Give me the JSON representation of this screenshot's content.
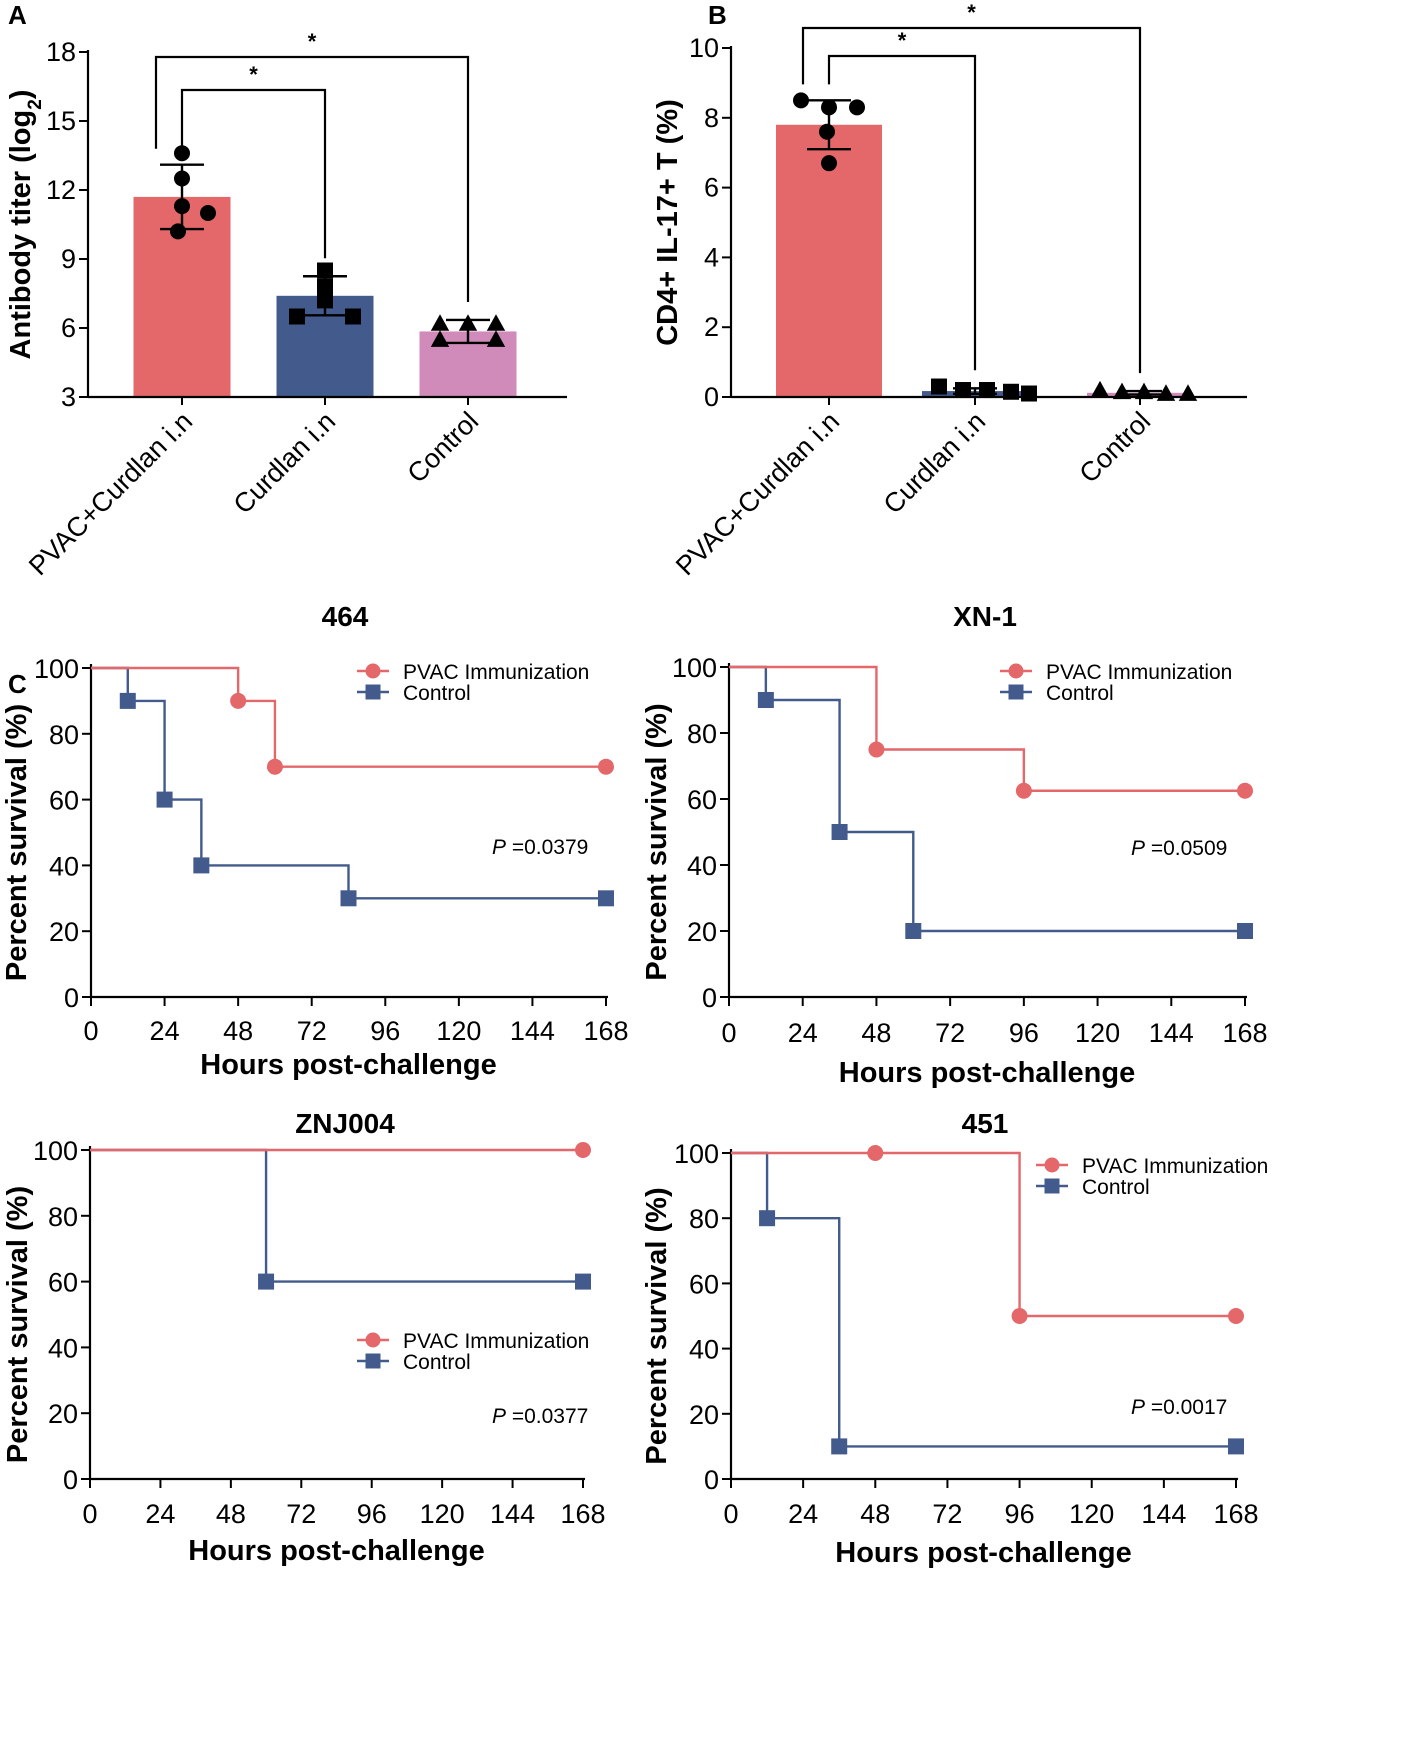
{
  "panels": {
    "A": "A",
    "B": "B",
    "C": "C"
  },
  "chart_data": [
    {
      "id": "A",
      "type": "bar",
      "ylabel": "Antibody titer (log",
      "ylabel_sub": "2",
      "ylabel_close": ")",
      "ylim": [
        3,
        18
      ],
      "yticks": [
        "3",
        "6",
        "9",
        "12",
        "15",
        "18"
      ],
      "categories": [
        "PVAC+Curdlan i.n",
        "Curdlan i.n",
        "Control"
      ],
      "values": [
        11.7,
        7.4,
        5.85
      ],
      "error": [
        1.4,
        0.85,
        0.5
      ],
      "colors": [
        "#e4676a",
        "#435a8c",
        "#d08bbb"
      ],
      "markers": [
        "circle",
        "square",
        "triangle"
      ],
      "points": [
        [
          13.6,
          12.5,
          11.3,
          11.0,
          10.2
        ],
        [
          8.5,
          7.8,
          7.2,
          6.5,
          6.5
        ],
        [
          6.2,
          6.2,
          6.2,
          5.5,
          5.5
        ]
      ],
      "significance": [
        {
          "from": 0,
          "to": 1,
          "label": "*"
        },
        {
          "from": 0,
          "to": 2,
          "label": "*"
        }
      ]
    },
    {
      "id": "B",
      "type": "bar",
      "ylabel": "CD4+ IL-17+ T (%)",
      "ylim": [
        0,
        10
      ],
      "yticks": [
        "0",
        "2",
        "4",
        "6",
        "8",
        "10"
      ],
      "categories": [
        "PVAC+Curdlan i.n",
        "Curdlan i.n",
        "Control"
      ],
      "values": [
        7.8,
        0.17,
        0.12
      ],
      "error": [
        0.7,
        0.08,
        0.05
      ],
      "colors": [
        "#e4676a",
        "#435a8c",
        "#d08bbb"
      ],
      "markers": [
        "circle",
        "square",
        "triangle"
      ],
      "points": [
        [
          8.5,
          8.3,
          8.3,
          7.6,
          6.7
        ],
        [
          0.3,
          0.2,
          0.2,
          0.15,
          0.1
        ],
        [
          0.2,
          0.15,
          0.15,
          0.1,
          0.1
        ]
      ],
      "significance": [
        {
          "from": 0,
          "to": 1,
          "label": "*"
        },
        {
          "from": 0,
          "to": 2,
          "label": "*"
        }
      ]
    },
    {
      "id": "C1",
      "type": "line",
      "title": "464",
      "xlabel": "Hours post-challenge",
      "ylabel": "Percent survival (%)",
      "xlim": [
        0,
        168
      ],
      "ylim": [
        0,
        100
      ],
      "xticks": [
        "0",
        "24",
        "48",
        "72",
        "96",
        "120",
        "144",
        "168"
      ],
      "yticks": [
        "0",
        "20",
        "40",
        "60",
        "80",
        "100"
      ],
      "legend_position": "top-right",
      "pvalue_prefix": "P",
      "pvalue_text": " =0.0379",
      "series": [
        {
          "name": "PVAC Immunization",
          "color": "#e4676a",
          "marker": "circle",
          "steps": [
            [
              0,
              100
            ],
            [
              48,
              90
            ],
            [
              60,
              70
            ],
            [
              168,
              70
            ]
          ],
          "markers": [
            [
              48,
              90
            ],
            [
              60,
              70
            ],
            [
              168,
              70
            ]
          ]
        },
        {
          "name": "Control",
          "color": "#435a8c",
          "marker": "square",
          "steps": [
            [
              0,
              100
            ],
            [
              12,
              90
            ],
            [
              24,
              60
            ],
            [
              36,
              40
            ],
            [
              84,
              30
            ],
            [
              168,
              30
            ]
          ],
          "markers": [
            [
              12,
              90
            ],
            [
              24,
              60
            ],
            [
              36,
              40
            ],
            [
              84,
              30
            ],
            [
              168,
              30
            ]
          ]
        }
      ]
    },
    {
      "id": "C2",
      "type": "line",
      "title": "XN-1",
      "xlabel": "Hours post-challenge",
      "ylabel": "Percent survival (%)",
      "xlim": [
        0,
        168
      ],
      "ylim": [
        0,
        100
      ],
      "xticks": [
        "0",
        "24",
        "48",
        "72",
        "96",
        "120",
        "144",
        "168"
      ],
      "yticks": [
        "0",
        "20",
        "40",
        "60",
        "80",
        "100"
      ],
      "legend_position": "top-right",
      "pvalue_prefix": "P",
      "pvalue_text": " =0.0509",
      "series": [
        {
          "name": "PVAC Immunization",
          "color": "#e4676a",
          "marker": "circle",
          "steps": [
            [
              0,
              100
            ],
            [
              48,
              75
            ],
            [
              96,
              62.5
            ],
            [
              168,
              62.5
            ]
          ],
          "markers": [
            [
              48,
              75
            ],
            [
              96,
              62.5
            ],
            [
              168,
              62.5
            ]
          ]
        },
        {
          "name": "Control",
          "color": "#435a8c",
          "marker": "square",
          "steps": [
            [
              0,
              100
            ],
            [
              12,
              90
            ],
            [
              36,
              50
            ],
            [
              60,
              20
            ],
            [
              168,
              20
            ]
          ],
          "markers": [
            [
              12,
              90
            ],
            [
              36,
              50
            ],
            [
              60,
              20
            ],
            [
              168,
              20
            ]
          ]
        }
      ]
    },
    {
      "id": "C3",
      "type": "line",
      "title": "ZNJ004",
      "xlabel": "Hours post-challenge",
      "ylabel": "Percent survival (%)",
      "xlim": [
        0,
        168
      ],
      "ylim": [
        0,
        100
      ],
      "xticks": [
        "0",
        "24",
        "48",
        "72",
        "96",
        "120",
        "144",
        "168"
      ],
      "yticks": [
        "0",
        "20",
        "40",
        "60",
        "80",
        "100"
      ],
      "legend_position": "middle-right",
      "pvalue_prefix": "P",
      "pvalue_text": " =0.0377",
      "series": [
        {
          "name": "PVAC Immunization",
          "color": "#e4676a",
          "marker": "circle",
          "steps": [
            [
              0,
              100
            ],
            [
              168,
              100
            ]
          ],
          "markers": [
            [
              168,
              100
            ]
          ]
        },
        {
          "name": "Control",
          "color": "#435a8c",
          "marker": "square",
          "steps": [
            [
              0,
              100
            ],
            [
              60,
              60
            ],
            [
              168,
              60
            ]
          ],
          "markers": [
            [
              60,
              60
            ],
            [
              168,
              60
            ]
          ]
        }
      ]
    },
    {
      "id": "C4",
      "type": "line",
      "title": "451",
      "xlabel": "Hours post-challenge",
      "ylabel": "Percent survival (%)",
      "xlim": [
        0,
        168
      ],
      "ylim": [
        0,
        100
      ],
      "xticks": [
        "0",
        "24",
        "48",
        "72",
        "96",
        "120",
        "144",
        "168"
      ],
      "yticks": [
        "0",
        "20",
        "40",
        "60",
        "80",
        "100"
      ],
      "legend_position": "top-right",
      "pvalue_prefix": "P",
      "pvalue_text": " =0.0017",
      "series": [
        {
          "name": "PVAC Immunization",
          "color": "#e4676a",
          "marker": "circle",
          "steps": [
            [
              0,
              100
            ],
            [
              96,
              50
            ],
            [
              168,
              50
            ]
          ],
          "markers": [
            [
              48,
              100
            ],
            [
              96,
              50
            ],
            [
              168,
              50
            ]
          ]
        },
        {
          "name": "Control",
          "color": "#435a8c",
          "marker": "square",
          "steps": [
            [
              0,
              100
            ],
            [
              12,
              80
            ],
            [
              36,
              10
            ],
            [
              168,
              10
            ]
          ],
          "markers": [
            [
              12,
              80
            ],
            [
              36,
              10
            ],
            [
              168,
              10
            ]
          ]
        }
      ]
    }
  ]
}
